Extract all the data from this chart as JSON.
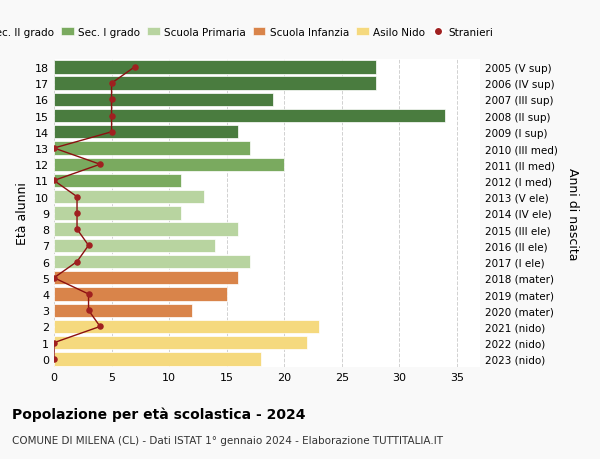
{
  "ages_top_to_bottom": [
    18,
    17,
    16,
    15,
    14,
    13,
    12,
    11,
    10,
    9,
    8,
    7,
    6,
    5,
    4,
    3,
    2,
    1,
    0
  ],
  "right_labels_top_to_bottom": [
    "2005 (V sup)",
    "2006 (IV sup)",
    "2007 (III sup)",
    "2008 (II sup)",
    "2009 (I sup)",
    "2010 (III med)",
    "2011 (II med)",
    "2012 (I med)",
    "2013 (V ele)",
    "2014 (IV ele)",
    "2015 (III ele)",
    "2016 (II ele)",
    "2017 (I ele)",
    "2018 (mater)",
    "2019 (mater)",
    "2020 (mater)",
    "2021 (nido)",
    "2022 (nido)",
    "2023 (nido)"
  ],
  "bar_values_top_to_bottom": [
    28,
    28,
    19,
    34,
    16,
    17,
    20,
    11,
    13,
    11,
    16,
    14,
    17,
    16,
    15,
    12,
    23,
    22,
    18
  ],
  "bar_colors_top_to_bottom": [
    "#4a7c3f",
    "#4a7c3f",
    "#4a7c3f",
    "#4a7c3f",
    "#4a7c3f",
    "#7aaa5f",
    "#7aaa5f",
    "#7aaa5f",
    "#b8d4a0",
    "#b8d4a0",
    "#b8d4a0",
    "#b8d4a0",
    "#b8d4a0",
    "#d9844a",
    "#d9844a",
    "#d9844a",
    "#f5d97e",
    "#f5d97e",
    "#f5d97e"
  ],
  "stranieri_values_top_to_bottom": [
    7,
    5,
    5,
    5,
    5,
    0,
    4,
    0,
    2,
    2,
    2,
    3,
    2,
    0,
    3,
    3,
    4,
    0,
    0
  ],
  "legend_labels": [
    "Sec. II grado",
    "Sec. I grado",
    "Scuola Primaria",
    "Scuola Infanzia",
    "Asilo Nido",
    "Stranieri"
  ],
  "legend_colors": [
    "#4a7c3f",
    "#7aaa5f",
    "#b8d4a0",
    "#d9844a",
    "#f5d97e",
    "#a02020"
  ],
  "title": "Popolazione per età scolastica - 2024",
  "subtitle": "COMUNE DI MILENA (CL) - Dati ISTAT 1° gennaio 2024 - Elaborazione TUTTITALIA.IT",
  "ylabel_left": "Età alunni",
  "ylabel_right": "Anni di nascita",
  "xlim": [
    0,
    37
  ],
  "xticks": [
    0,
    5,
    10,
    15,
    20,
    25,
    30,
    35
  ],
  "background_color": "#f9f9f9",
  "bar_background": "#ffffff",
  "grid_color": "#cccccc"
}
